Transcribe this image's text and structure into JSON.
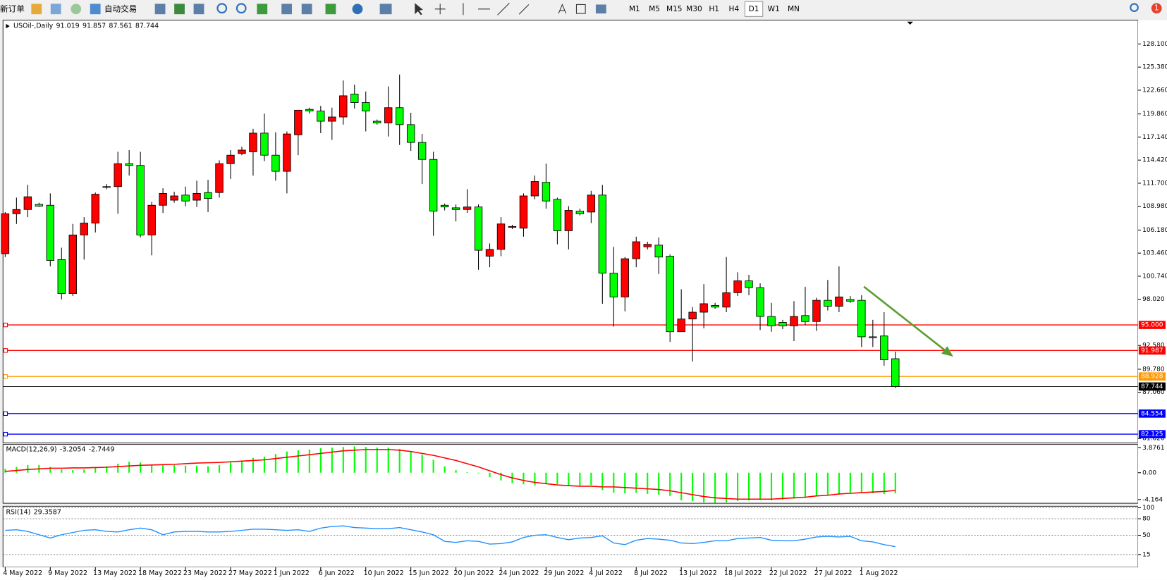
{
  "toolbar": {
    "buttons": [
      "新订单",
      "自动交易"
    ],
    "timeframes": [
      "M1",
      "M5",
      "M15",
      "M30",
      "H1",
      "H4",
      "D1",
      "W1",
      "MN"
    ],
    "active_timeframe": 6,
    "badge": "1"
  },
  "chart_data": [
    {
      "type": "candlestick",
      "title": "USOil-,Daily",
      "categories": [
        "4 May 2022",
        null,
        null,
        null,
        "9 May 2022",
        null,
        null,
        null,
        "13 May 2022",
        null,
        null,
        null,
        "18 May 2022",
        null,
        null,
        null,
        "23 May 2022",
        null,
        null,
        null,
        "27 May 2022",
        null,
        null,
        null,
        "1 Jun 2022",
        null,
        null,
        null,
        "6 Jun 2022",
        null,
        null,
        null,
        "10 Jun 2022",
        null,
        null,
        null,
        "15 Jun 2022",
        null,
        null,
        null,
        "20 Jun 2022",
        null,
        null,
        null,
        "24 Jun 2022",
        null,
        null,
        null,
        "29 Jun 2022",
        null,
        null,
        null,
        "4 Jul 2022",
        null,
        null,
        null,
        "8 Jul 2022",
        null,
        null,
        null,
        "13 Jul 2022",
        null,
        null,
        null,
        "18 Jul 2022",
        null,
        null,
        null,
        "22 Jul 2022",
        null,
        null,
        null,
        "27 Jul 2022",
        null,
        null,
        null,
        "1 Aug 2022",
        null,
        null,
        null
      ],
      "open": [
        103.4,
        108.1,
        108.6,
        109.2,
        109.1,
        102.7,
        98.7,
        105.6,
        107.0,
        111.3,
        111.3,
        114.0,
        113.8,
        105.6,
        109.1,
        109.7,
        110.3,
        109.7,
        110.6,
        110.6,
        114.0,
        115.2,
        115.4,
        117.6,
        115.0,
        113.1,
        117.4,
        120.4,
        120.2,
        119.0,
        119.5,
        122.2,
        121.2,
        119.0,
        118.8,
        120.6,
        118.6,
        116.5,
        114.5,
        109.1,
        108.8,
        108.6,
        108.9,
        103.1,
        103.9,
        106.5,
        106.4,
        110.2,
        111.8,
        109.8,
        106.1,
        108.4,
        108.3,
        110.3,
        101.1,
        98.3,
        102.8,
        104.2,
        104.4,
        103.1,
        94.2,
        95.7,
        96.5,
        97.3,
        97.1,
        98.8,
        100.2,
        99.4,
        96.0,
        95.3,
        94.9,
        96.1,
        95.4,
        97.9,
        97.2,
        98.0,
        97.9,
        93.6,
        93.7,
        91.019
      ],
      "high": [
        108.3,
        110.0,
        111.5,
        109.4,
        110.5,
        104.1,
        106.9,
        107.7,
        110.6,
        111.6,
        115.4,
        115.6,
        115.4,
        109.5,
        111.1,
        110.7,
        111.3,
        112.0,
        112.1,
        114.4,
        115.6,
        116.0,
        118.1,
        119.9,
        117.7,
        117.8,
        120.3,
        120.6,
        120.8,
        120.6,
        123.8,
        123.3,
        122.5,
        119.2,
        123.1,
        124.5,
        120.0,
        117.5,
        115.4,
        109.3,
        109.2,
        111.0,
        109.2,
        104.6,
        107.7,
        106.8,
        110.5,
        112.6,
        114.0,
        110.0,
        109.0,
        108.7,
        110.8,
        111.5,
        104.2,
        103.0,
        105.4,
        104.8,
        105.3,
        103.3,
        99.2,
        97.1,
        99.8,
        97.6,
        103.0,
        101.2,
        100.9,
        99.9,
        97.6,
        95.6,
        97.8,
        99.5,
        98.2,
        100.3,
        101.9,
        98.4,
        98.5,
        95.6,
        96.5,
        91.857
      ],
      "low": [
        103.0,
        106.9,
        107.7,
        108.9,
        101.9,
        98.0,
        98.4,
        102.7,
        105.9,
        111.0,
        108.1,
        112.6,
        105.3,
        103.2,
        108.2,
        109.4,
        109.0,
        108.9,
        108.3,
        110.0,
        112.2,
        115.0,
        112.6,
        114.3,
        112.0,
        110.5,
        115.0,
        119.9,
        117.6,
        116.8,
        118.6,
        120.5,
        117.8,
        118.6,
        117.2,
        116.2,
        115.5,
        111.6,
        105.5,
        108.5,
        107.2,
        108.2,
        101.5,
        101.8,
        103.1,
        106.3,
        105.4,
        109.8,
        108.7,
        104.5,
        103.9,
        107.9,
        107.0,
        97.5,
        94.8,
        96.6,
        101.8,
        103.9,
        101.0,
        93.0,
        94.2,
        90.7,
        94.6,
        96.9,
        96.5,
        98.4,
        98.5,
        94.4,
        94.2,
        94.5,
        93.1,
        95.0,
        94.3,
        96.7,
        96.5,
        97.6,
        92.4,
        92.4,
        90.2,
        87.561
      ],
      "close": [
        108.1,
        108.6,
        110.1,
        109.0,
        102.6,
        98.7,
        105.6,
        107.0,
        110.4,
        111.3,
        114.0,
        113.8,
        105.6,
        109.1,
        110.5,
        110.2,
        109.6,
        110.5,
        109.9,
        114.0,
        115.0,
        115.6,
        117.6,
        115.0,
        113.1,
        117.5,
        120.3,
        120.2,
        119.0,
        119.5,
        122.0,
        121.2,
        120.2,
        118.8,
        120.6,
        118.6,
        116.5,
        114.5,
        108.4,
        108.9,
        108.6,
        108.9,
        103.8,
        103.9,
        106.9,
        106.6,
        110.2,
        111.9,
        109.6,
        106.1,
        108.5,
        108.1,
        110.3,
        101.1,
        98.3,
        102.8,
        104.8,
        104.5,
        103.0,
        94.2,
        95.7,
        96.5,
        97.5,
        97.1,
        98.8,
        100.2,
        99.4,
        96.0,
        94.9,
        94.9,
        96.0,
        95.4,
        97.9,
        97.2,
        98.3,
        97.8,
        93.6,
        93.5,
        90.9,
        87.744
      ],
      "up_color": "#ff0000",
      "down_color": "#00ff00",
      "ylim": [
        81.094,
        130.906
      ],
      "yticks": [
        {
          "value": 128.1,
          "label": "128.100"
        },
        {
          "value": 125.38,
          "label": "125.380"
        },
        {
          "value": 122.66,
          "label": "122.660"
        },
        {
          "value": 119.86,
          "label": "119.860"
        },
        {
          "value": 117.14,
          "label": "117.140"
        },
        {
          "value": 114.42,
          "label": "114.420"
        },
        {
          "value": 111.7,
          "label": "111.700"
        },
        {
          "value": 108.98,
          "label": "108.980"
        },
        {
          "value": 106.18,
          "label": "106.180"
        },
        {
          "value": 103.46,
          "label": "103.460"
        },
        {
          "value": 100.74,
          "label": "100.740"
        },
        {
          "value": 98.02,
          "label": "98.020"
        },
        {
          "value": 92.58,
          "label": "92.580"
        },
        {
          "value": 89.78,
          "label": "89.780"
        },
        {
          "value": 87.06,
          "label": "87.060"
        },
        {
          "value": 81.62,
          "label": "81.620"
        }
      ],
      "levels": [
        {
          "value": 95,
          "label": "95.000",
          "color": "#ff0000"
        },
        {
          "value": 91.987,
          "label": "91.987",
          "color": "#ff0000"
        },
        {
          "value": 88.928,
          "label": "88.928",
          "color": "#ff9900"
        },
        {
          "value": 84.554,
          "label": "84.554",
          "color": "#0000ff"
        },
        {
          "value": 82.125,
          "label": "82.125",
          "color": "#0000ff"
        }
      ]
    },
    {
      "type": "macd",
      "title": "MACD(12,26,9)",
      "series": [
        {
          "color": "#00ff00",
          "values": [
            0.6,
            0.9,
            1.2,
            1.2,
            0.9,
            0.5,
            0.4,
            0.5,
            0.8,
            1.0,
            1.4,
            1.7,
            1.6,
            1.3,
            1.2,
            1.2,
            1.1,
            1.1,
            1.0,
            1.2,
            1.6,
            1.8,
            2.3,
            2.5,
            2.9,
            3.3,
            3.5,
            3.6,
            3.8,
            3.9,
            4.0,
            4.1,
            4.0,
            3.9,
            3.9,
            3.7,
            3.3,
            2.8,
            2.0,
            1.0,
            0.4,
            0.1,
            -0.1,
            -0.7,
            -1.2,
            -1.6,
            -1.8,
            -1.9,
            -1.7,
            -1.8,
            -2.0,
            -2.0,
            -1.9,
            -2.7,
            -3.1,
            -3.2,
            -3.1,
            -3.3,
            -3.4,
            -3.6,
            -4.3,
            -4.4,
            -4.6,
            -4.7,
            -4.6,
            -4.4,
            -4.3,
            -4.2,
            -4.3,
            -4.2,
            -4.0,
            -3.9,
            -3.7,
            -3.5,
            -3.3,
            -3.1,
            -3.1,
            -3.2,
            -3.3,
            -3.2054
          ]
        },
        {
          "color": "#ff0000",
          "values": [
            0.2,
            0.35,
            0.5,
            0.6,
            0.7,
            0.7,
            0.75,
            0.75,
            0.8,
            0.85,
            0.95,
            1.05,
            1.15,
            1.2,
            1.25,
            1.3,
            1.4,
            1.5,
            1.55,
            1.6,
            1.7,
            1.8,
            1.9,
            2.0,
            2.2,
            2.4,
            2.6,
            2.8,
            3.0,
            3.2,
            3.4,
            3.5,
            3.6,
            3.6,
            3.6,
            3.5,
            3.3,
            3.0,
            2.7,
            2.3,
            1.9,
            1.4,
            0.9,
            0.3,
            -0.3,
            -0.8,
            -1.2,
            -1.5,
            -1.7,
            -1.9,
            -2.0,
            -2.1,
            -2.1,
            -2.2,
            -2.2,
            -2.3,
            -2.4,
            -2.5,
            -2.6,
            -2.8,
            -3.1,
            -3.4,
            -3.7,
            -3.9,
            -4.0,
            -4.1,
            -4.1,
            -4.1,
            -4.1,
            -4.0,
            -3.9,
            -3.8,
            -3.6,
            -3.5,
            -3.3,
            -3.2,
            -3.1,
            -3.0,
            -2.9,
            -2.7449
          ]
        }
      ],
      "ylim": [
        -4.74,
        4.39
      ],
      "yticks": [
        3.8761,
        {
          "value": 0,
          "label": "0.00"
        },
        -4.164
      ]
    },
    {
      "type": "line",
      "title": "RSI(14)",
      "values": [
        59,
        60,
        57,
        51,
        45,
        51,
        55,
        59,
        60,
        57,
        56,
        60,
        63,
        60,
        51,
        56,
        57,
        57,
        56,
        56,
        57,
        59,
        61,
        61,
        60,
        59,
        60,
        57,
        63,
        66,
        67,
        64,
        63,
        62,
        62,
        64,
        60,
        56,
        51,
        39,
        37,
        40,
        39,
        34,
        35,
        38,
        46,
        50,
        51,
        46,
        42,
        45,
        46,
        49,
        36,
        33,
        41,
        44,
        43,
        41,
        36,
        35,
        37,
        40,
        40,
        44,
        45,
        46,
        41,
        40,
        40,
        43,
        47,
        48,
        47,
        48,
        40,
        38,
        33,
        29.3587
      ],
      "color": "#1e90ff",
      "ylim": [
        -8,
        102.7
      ],
      "yticks": [
        100,
        80,
        50,
        15
      ],
      "grid": true
    }
  ]
}
